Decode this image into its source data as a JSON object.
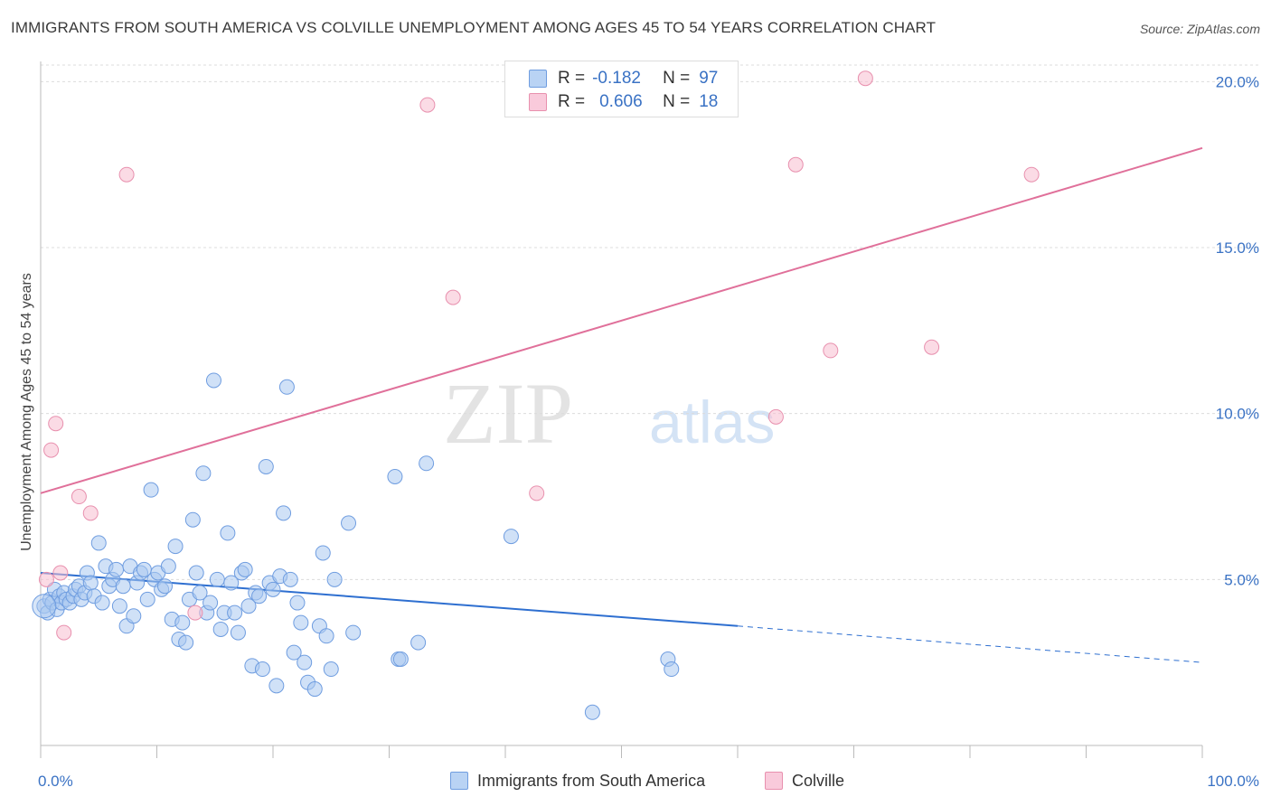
{
  "header": {
    "title": "IMMIGRANTS FROM SOUTH AMERICA VS COLVILLE UNEMPLOYMENT AMONG AGES 45 TO 54 YEARS CORRELATION CHART",
    "source": "Source: ZipAtlas.com"
  },
  "watermark": {
    "zip": "ZIP",
    "atlas": "atlas"
  },
  "legend": {
    "r_label": "R =",
    "n_label": "N =",
    "rows": [
      {
        "r": "-0.182",
        "n": "97"
      },
      {
        "r": "0.606",
        "n": "18"
      }
    ]
  },
  "bottom_legend": {
    "items": [
      "Immigrants from South America",
      "Colville"
    ]
  },
  "colors": {
    "blue_fill": "#a9c8f0",
    "blue_stroke": "#6f9de0",
    "blue_line": "#2e6fd0",
    "pink_fill": "#f7bdd0",
    "pink_stroke": "#e890ae",
    "pink_line": "#e0709a",
    "tick_label": "#3a72c4",
    "grid": "#dcdcdc"
  },
  "chart_data": {
    "type": "scatter",
    "title": "IMMIGRANTS FROM SOUTH AMERICA VS COLVILLE UNEMPLOYMENT AMONG AGES 45 TO 54 YEARS CORRELATION CHART",
    "xlabel": "",
    "ylabel": "Unemployment Among Ages 45 to 54 years",
    "x_tick_labels": [
      "0.0%",
      "100.0%"
    ],
    "y_tick_labels": [
      "5.0%",
      "10.0%",
      "15.0%",
      "20.0%"
    ],
    "y_ticks": [
      5,
      10,
      15,
      20
    ],
    "xlim": [
      0,
      100
    ],
    "ylim": [
      0,
      20.5
    ],
    "grid": "horizontal dashed",
    "legend_position": "top-center",
    "series": [
      {
        "name": "Immigrants from South America",
        "r": -0.182,
        "n": 97,
        "trend": {
          "x0": 0,
          "y0": 5.2,
          "x1": 60,
          "y1": 3.6,
          "dash_to_x": 100,
          "dash_to_y": 2.5
        },
        "points": [
          [
            0.3,
            4.2
          ],
          [
            0.6,
            4.0
          ],
          [
            0.8,
            4.4
          ],
          [
            1.0,
            4.3
          ],
          [
            1.2,
            4.7
          ],
          [
            1.4,
            4.1
          ],
          [
            1.6,
            4.5
          ],
          [
            1.8,
            4.3
          ],
          [
            2.0,
            4.6
          ],
          [
            2.2,
            4.4
          ],
          [
            2.5,
            4.3
          ],
          [
            2.8,
            4.5
          ],
          [
            3.0,
            4.7
          ],
          [
            3.3,
            4.8
          ],
          [
            3.5,
            4.4
          ],
          [
            3.8,
            4.6
          ],
          [
            4.0,
            5.2
          ],
          [
            4.3,
            4.9
          ],
          [
            4.6,
            4.5
          ],
          [
            5.0,
            6.1
          ],
          [
            5.3,
            4.3
          ],
          [
            5.6,
            5.4
          ],
          [
            5.9,
            4.8
          ],
          [
            6.2,
            5.0
          ],
          [
            6.5,
            5.3
          ],
          [
            6.8,
            4.2
          ],
          [
            7.1,
            4.8
          ],
          [
            7.4,
            3.6
          ],
          [
            7.7,
            5.4
          ],
          [
            8.0,
            3.9
          ],
          [
            8.3,
            4.9
          ],
          [
            8.6,
            5.2
          ],
          [
            8.9,
            5.3
          ],
          [
            9.2,
            4.4
          ],
          [
            9.5,
            7.7
          ],
          [
            9.8,
            5.0
          ],
          [
            10.1,
            5.2
          ],
          [
            10.4,
            4.7
          ],
          [
            10.7,
            4.8
          ],
          [
            11.0,
            5.4
          ],
          [
            11.3,
            3.8
          ],
          [
            11.6,
            6.0
          ],
          [
            11.9,
            3.2
          ],
          [
            12.2,
            3.7
          ],
          [
            12.5,
            3.1
          ],
          [
            12.8,
            4.4
          ],
          [
            13.1,
            6.8
          ],
          [
            13.4,
            5.2
          ],
          [
            13.7,
            4.6
          ],
          [
            14.0,
            8.2
          ],
          [
            14.3,
            4.0
          ],
          [
            14.6,
            4.3
          ],
          [
            14.9,
            11.0
          ],
          [
            15.2,
            5.0
          ],
          [
            15.5,
            3.5
          ],
          [
            15.8,
            4.0
          ],
          [
            16.1,
            6.4
          ],
          [
            16.4,
            4.9
          ],
          [
            16.7,
            4.0
          ],
          [
            17.0,
            3.4
          ],
          [
            17.3,
            5.2
          ],
          [
            17.6,
            5.3
          ],
          [
            17.9,
            4.2
          ],
          [
            18.2,
            2.4
          ],
          [
            18.5,
            4.6
          ],
          [
            18.8,
            4.5
          ],
          [
            19.1,
            2.3
          ],
          [
            19.4,
            8.4
          ],
          [
            19.7,
            4.9
          ],
          [
            20.0,
            4.7
          ],
          [
            20.3,
            1.8
          ],
          [
            20.6,
            5.1
          ],
          [
            20.9,
            7.0
          ],
          [
            21.2,
            10.8
          ],
          [
            21.5,
            5.0
          ],
          [
            21.8,
            2.8
          ],
          [
            22.1,
            4.3
          ],
          [
            22.4,
            3.7
          ],
          [
            22.7,
            2.5
          ],
          [
            23.0,
            1.9
          ],
          [
            23.6,
            1.7
          ],
          [
            24.0,
            3.6
          ],
          [
            24.3,
            5.8
          ],
          [
            24.6,
            3.3
          ],
          [
            25.0,
            2.3
          ],
          [
            25.3,
            5.0
          ],
          [
            26.5,
            6.7
          ],
          [
            26.9,
            3.4
          ],
          [
            30.5,
            8.1
          ],
          [
            30.8,
            2.6
          ],
          [
            31.0,
            2.6
          ],
          [
            32.5,
            3.1
          ],
          [
            33.2,
            8.5
          ],
          [
            40.5,
            6.3
          ],
          [
            54.0,
            2.6
          ],
          [
            54.3,
            2.3
          ],
          [
            47.5,
            1.0
          ]
        ]
      },
      {
        "name": "Colville",
        "r": 0.606,
        "n": 18,
        "trend": {
          "x0": 0,
          "y0": 7.6,
          "x1": 100,
          "y1": 18.0
        },
        "points": [
          [
            0.5,
            5.0
          ],
          [
            0.9,
            8.9
          ],
          [
            1.3,
            9.7
          ],
          [
            1.7,
            5.2
          ],
          [
            2.0,
            3.4
          ],
          [
            3.3,
            7.5
          ],
          [
            4.3,
            7.0
          ],
          [
            7.4,
            17.2
          ],
          [
            13.3,
            4.0
          ],
          [
            33.3,
            19.3
          ],
          [
            35.5,
            13.5
          ],
          [
            42.7,
            7.6
          ],
          [
            63.3,
            9.9
          ],
          [
            65.0,
            17.5
          ],
          [
            68.0,
            11.9
          ],
          [
            71.0,
            20.1
          ],
          [
            76.7,
            12.0
          ],
          [
            85.3,
            17.2
          ]
        ]
      }
    ]
  }
}
